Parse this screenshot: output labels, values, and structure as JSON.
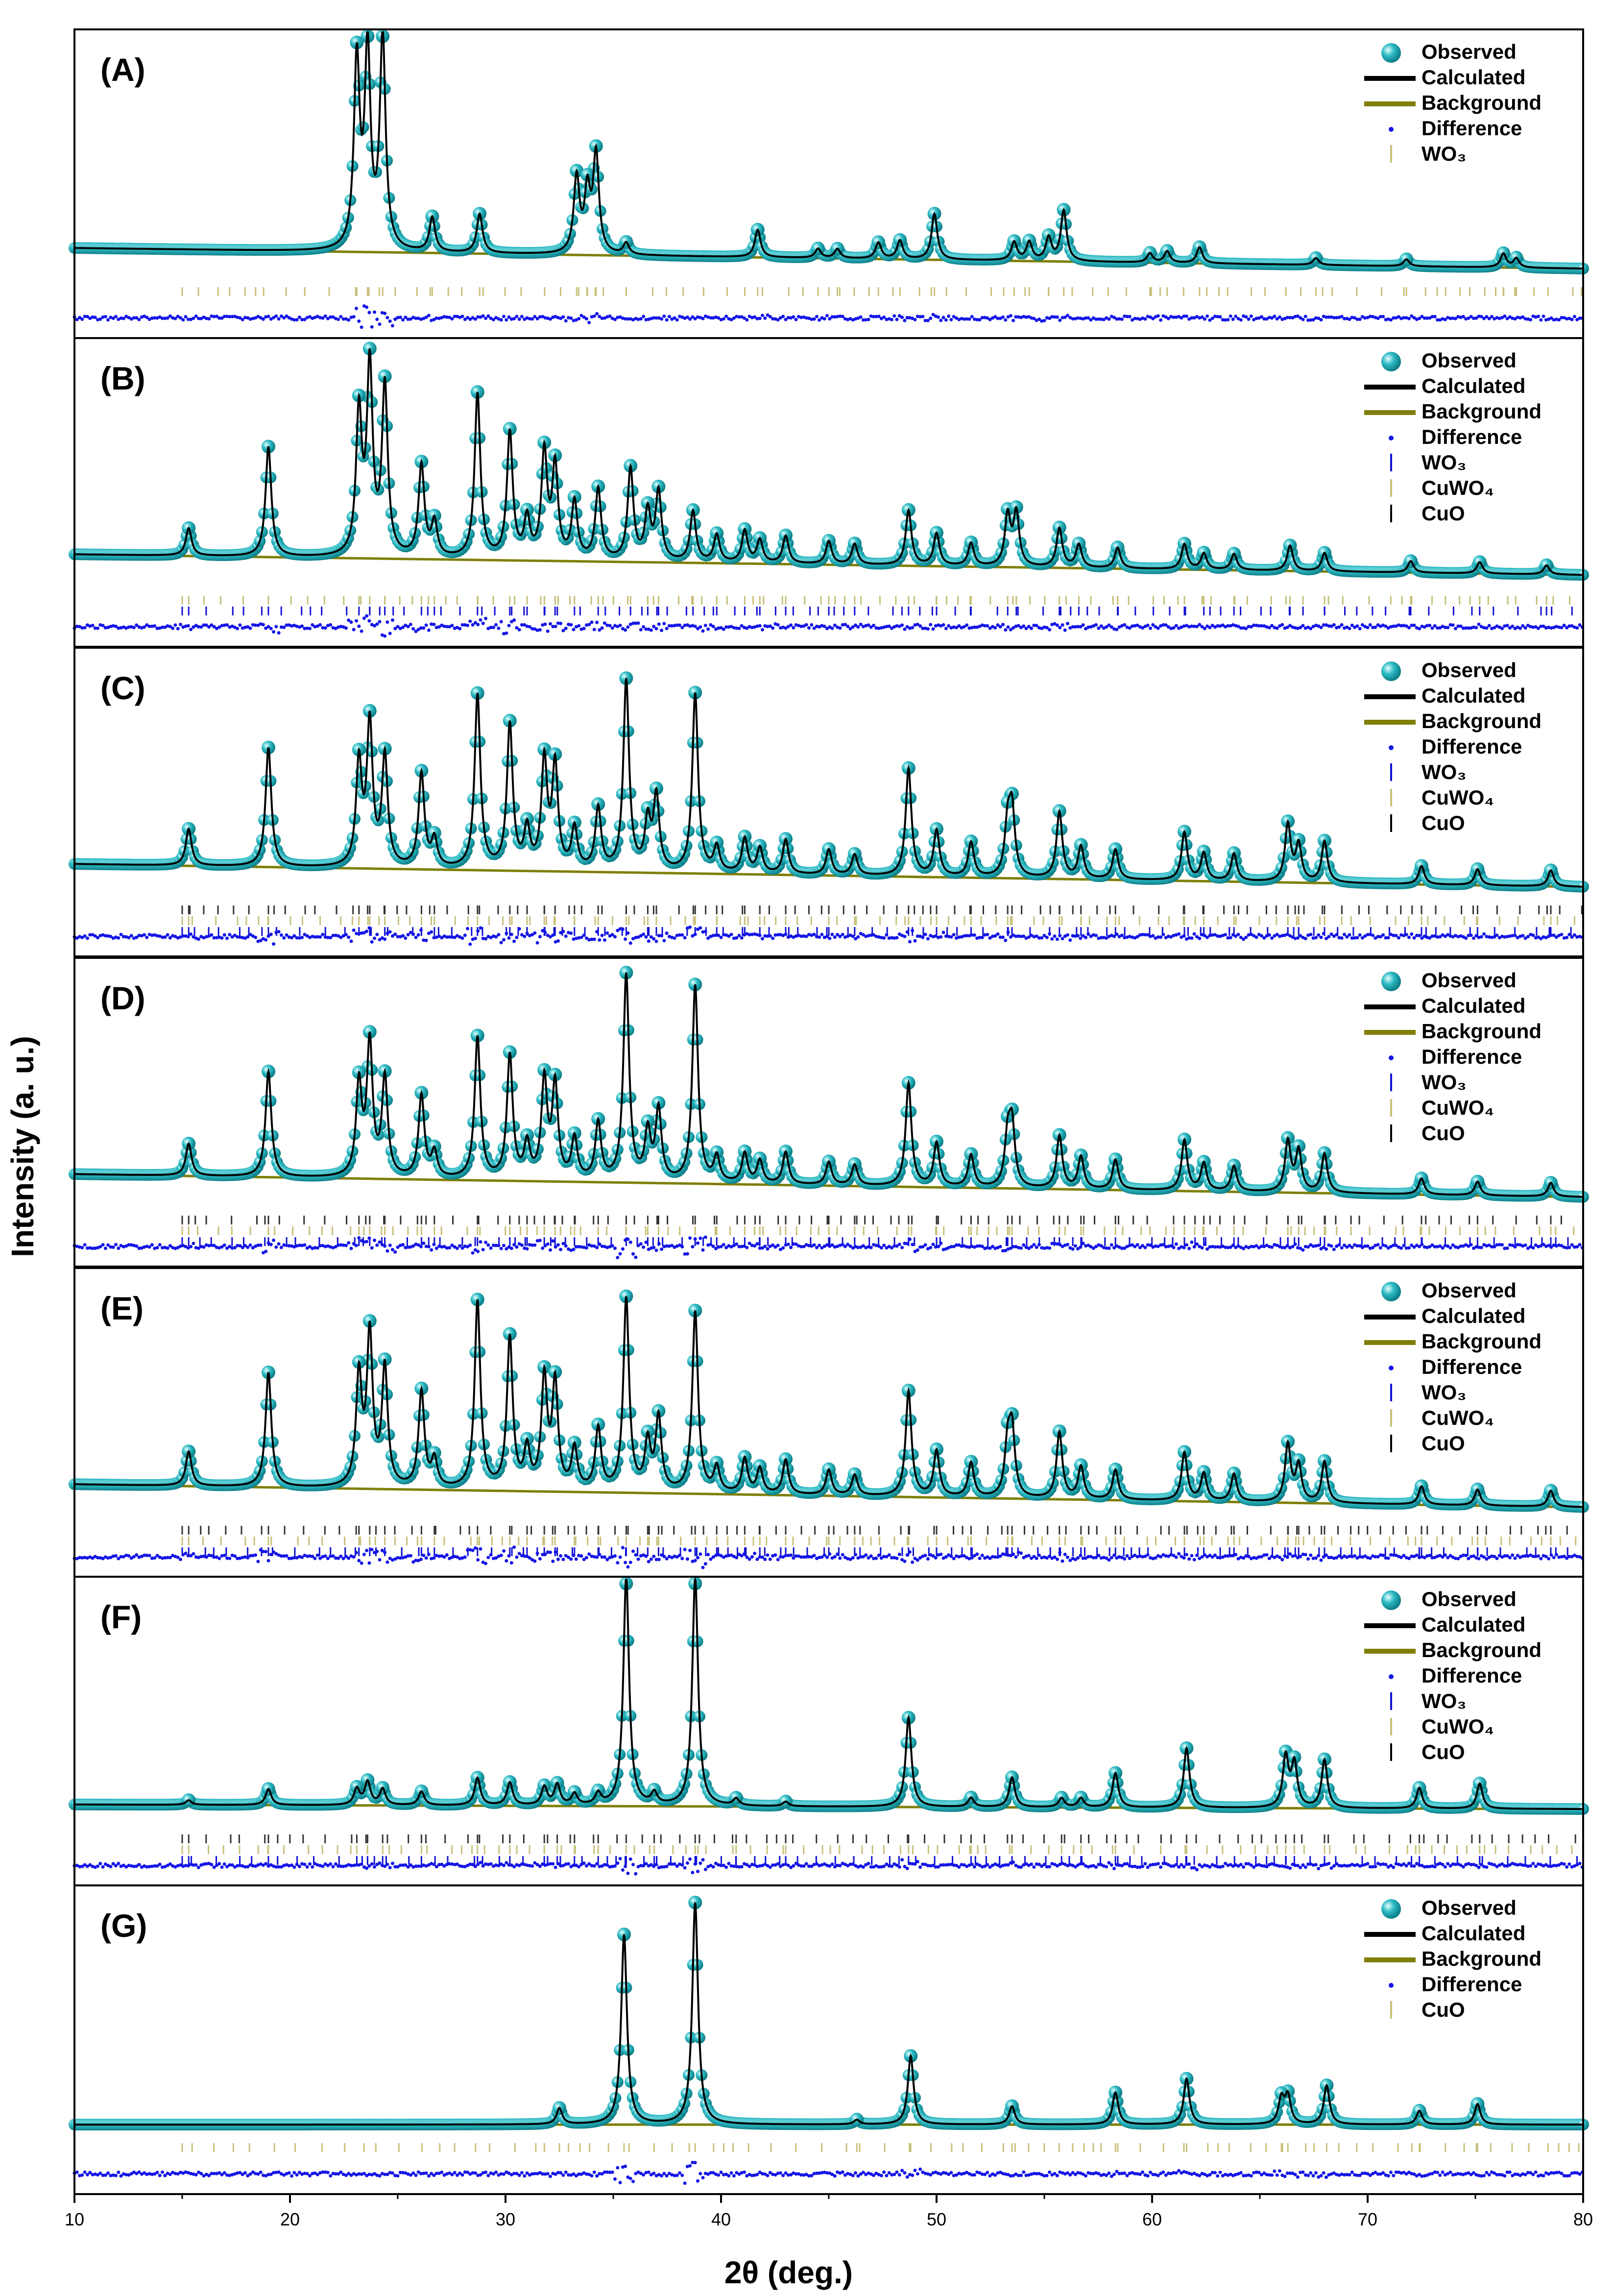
{
  "figure": {
    "xlabel": "2θ (deg.)",
    "ylabel": "Intensity (a. u.)",
    "colors": {
      "observed": "#2fbcc6",
      "calculated": "#000000",
      "background": "#7f7f0a",
      "difference": "#1414e6",
      "wo3": "#1010d0",
      "cuwo4": "#c8c07a",
      "cuo": "#000000"
    }
  },
  "chart_data": {
    "type": "line",
    "title": "",
    "xlabel": "2θ (deg.)",
    "ylabel": "Intensity (a. u.)",
    "xlim": [
      10,
      80
    ],
    "xticks": [
      10,
      20,
      30,
      40,
      50,
      60,
      70,
      80
    ],
    "panels": [
      {
        "label": "(A)",
        "legend": [
          "Observed",
          "Calculated",
          "Background",
          "Difference",
          "WO₃"
        ],
        "background": [
          0.09,
          0.0
        ],
        "peaks": [
          [
            23.1,
            0.82
          ],
          [
            23.6,
            0.86
          ],
          [
            24.3,
            0.93
          ],
          [
            26.6,
            0.15
          ],
          [
            28.8,
            0.17
          ],
          [
            33.3,
            0.33
          ],
          [
            33.8,
            0.26
          ],
          [
            34.2,
            0.43
          ],
          [
            35.6,
            0.05
          ],
          [
            41.7,
            0.12
          ],
          [
            44.5,
            0.04
          ],
          [
            45.4,
            0.04
          ],
          [
            47.3,
            0.07
          ],
          [
            48.3,
            0.08
          ],
          [
            49.9,
            0.2
          ],
          [
            53.6,
            0.08
          ],
          [
            54.3,
            0.08
          ],
          [
            55.2,
            0.1
          ],
          [
            55.9,
            0.22
          ],
          [
            59.9,
            0.04
          ],
          [
            60.7,
            0.05
          ],
          [
            62.2,
            0.07
          ],
          [
            67.6,
            0.03
          ],
          [
            71.8,
            0.03
          ],
          [
            76.3,
            0.06
          ],
          [
            76.9,
            0.04
          ]
        ],
        "ticks": [
          {
            "phase": "WO₃",
            "row": 0,
            "color": "#c8c07a"
          }
        ]
      },
      {
        "label": "(B)",
        "legend": [
          "Observed",
          "Calculated",
          "Background",
          "Difference",
          "WO₃",
          "CuWO₄",
          "CuO"
        ],
        "background": [
          0.1,
          0.01
        ],
        "peaks": [
          [
            15.3,
            0.12
          ],
          [
            19.0,
            0.48
          ],
          [
            23.2,
            0.62
          ],
          [
            23.7,
            0.82
          ],
          [
            24.4,
            0.74
          ],
          [
            26.1,
            0.4
          ],
          [
            26.7,
            0.15
          ],
          [
            28.7,
            0.72
          ],
          [
            30.2,
            0.55
          ],
          [
            31.0,
            0.17
          ],
          [
            31.8,
            0.46
          ],
          [
            32.3,
            0.4
          ],
          [
            33.2,
            0.25
          ],
          [
            34.3,
            0.31
          ],
          [
            35.8,
            0.4
          ],
          [
            36.6,
            0.21
          ],
          [
            37.1,
            0.3
          ],
          [
            38.7,
            0.22
          ],
          [
            39.8,
            0.12
          ],
          [
            41.1,
            0.14
          ],
          [
            41.8,
            0.1
          ],
          [
            43.0,
            0.12
          ],
          [
            45.0,
            0.1
          ],
          [
            46.2,
            0.09
          ],
          [
            48.7,
            0.24
          ],
          [
            50.0,
            0.14
          ],
          [
            51.6,
            0.1
          ],
          [
            53.3,
            0.22
          ],
          [
            53.7,
            0.23
          ],
          [
            55.7,
            0.17
          ],
          [
            56.6,
            0.1
          ],
          [
            58.4,
            0.09
          ],
          [
            61.5,
            0.11
          ],
          [
            62.4,
            0.07
          ],
          [
            63.8,
            0.07
          ],
          [
            66.4,
            0.11
          ],
          [
            68.0,
            0.08
          ],
          [
            72.0,
            0.05
          ],
          [
            75.2,
            0.05
          ],
          [
            78.3,
            0.04
          ]
        ],
        "ticks": [
          {
            "phase": "CuWO₄",
            "row": 0,
            "color": "#c8c07a"
          },
          {
            "phase": "WO₃",
            "row": 1,
            "color": "#1010d0"
          }
        ]
      },
      {
        "label": "(C)",
        "legend": [
          "Observed",
          "Calculated",
          "Background",
          "Difference",
          "WO₃",
          "CuWO₄",
          "CuO"
        ],
        "background": [
          0.1,
          0.0
        ],
        "peaks": [
          [
            15.3,
            0.16
          ],
          [
            19.0,
            0.52
          ],
          [
            23.2,
            0.45
          ],
          [
            23.7,
            0.62
          ],
          [
            24.4,
            0.48
          ],
          [
            26.1,
            0.41
          ],
          [
            26.7,
            0.12
          ],
          [
            28.7,
            0.76
          ],
          [
            30.2,
            0.63
          ],
          [
            31.0,
            0.17
          ],
          [
            31.8,
            0.47
          ],
          [
            32.3,
            0.45
          ],
          [
            33.2,
            0.18
          ],
          [
            34.3,
            0.27
          ],
          [
            35.6,
            0.83
          ],
          [
            36.6,
            0.21
          ],
          [
            37.0,
            0.32
          ],
          [
            38.8,
            0.78
          ],
          [
            39.8,
            0.11
          ],
          [
            41.1,
            0.15
          ],
          [
            41.8,
            0.11
          ],
          [
            43.0,
            0.15
          ],
          [
            45.0,
            0.11
          ],
          [
            46.2,
            0.09
          ],
          [
            48.7,
            0.47
          ],
          [
            50.0,
            0.2
          ],
          [
            51.6,
            0.15
          ],
          [
            53.5,
            0.28
          ],
          [
            53.3,
            0.22
          ],
          [
            55.7,
            0.29
          ],
          [
            56.7,
            0.14
          ],
          [
            58.3,
            0.13
          ],
          [
            61.5,
            0.21
          ],
          [
            62.4,
            0.12
          ],
          [
            63.8,
            0.12
          ],
          [
            66.3,
            0.25
          ],
          [
            66.8,
            0.16
          ],
          [
            68.0,
            0.18
          ],
          [
            72.5,
            0.08
          ],
          [
            75.1,
            0.07
          ],
          [
            78.5,
            0.07
          ]
        ],
        "ticks": [
          {
            "phase": "CuO",
            "row": 0,
            "color": "#333333"
          },
          {
            "phase": "CuWO₄",
            "row": 1,
            "color": "#c8c07a"
          },
          {
            "phase": "WO₃",
            "row": 2,
            "color": "#1010d0"
          }
        ]
      },
      {
        "label": "(D)",
        "legend": [
          "Observed",
          "Calculated",
          "Background",
          "Difference",
          "WO₃",
          "CuWO₄",
          "CuO"
        ],
        "background": [
          0.1,
          0.0
        ],
        "peaks": [
          [
            15.3,
            0.14
          ],
          [
            19.0,
            0.46
          ],
          [
            23.2,
            0.4
          ],
          [
            23.7,
            0.58
          ],
          [
            24.4,
            0.43
          ],
          [
            26.1,
            0.36
          ],
          [
            26.7,
            0.11
          ],
          [
            28.7,
            0.62
          ],
          [
            30.2,
            0.54
          ],
          [
            31.0,
            0.15
          ],
          [
            31.8,
            0.43
          ],
          [
            32.3,
            0.41
          ],
          [
            33.2,
            0.18
          ],
          [
            34.3,
            0.25
          ],
          [
            35.6,
            0.9
          ],
          [
            36.6,
            0.21
          ],
          [
            37.1,
            0.31
          ],
          [
            38.8,
            0.86
          ],
          [
            39.8,
            0.11
          ],
          [
            41.1,
            0.13
          ],
          [
            41.8,
            0.1
          ],
          [
            43.0,
            0.14
          ],
          [
            45.0,
            0.1
          ],
          [
            46.2,
            0.09
          ],
          [
            48.7,
            0.45
          ],
          [
            50.0,
            0.19
          ],
          [
            51.6,
            0.14
          ],
          [
            53.3,
            0.21
          ],
          [
            53.5,
            0.26
          ],
          [
            55.7,
            0.23
          ],
          [
            56.7,
            0.14
          ],
          [
            58.3,
            0.13
          ],
          [
            61.5,
            0.22
          ],
          [
            62.4,
            0.12
          ],
          [
            63.8,
            0.11
          ],
          [
            66.3,
            0.22
          ],
          [
            66.8,
            0.18
          ],
          [
            68.0,
            0.17
          ],
          [
            72.5,
            0.07
          ],
          [
            75.1,
            0.06
          ],
          [
            78.5,
            0.06
          ]
        ],
        "ticks": [
          {
            "phase": "CuO",
            "row": 0,
            "color": "#333333"
          },
          {
            "phase": "CuWO₄",
            "row": 1,
            "color": "#c8c07a"
          },
          {
            "phase": "WO₃",
            "row": 2,
            "color": "#1010d0"
          }
        ]
      },
      {
        "label": "(E)",
        "legend": [
          "Observed",
          "Calculated",
          "Background",
          "Difference",
          "WO₃",
          "CuWO₄",
          "CuO"
        ],
        "background": [
          0.1,
          0.0
        ],
        "peaks": [
          [
            15.3,
            0.15
          ],
          [
            19.0,
            0.5
          ],
          [
            23.2,
            0.48
          ],
          [
            23.7,
            0.66
          ],
          [
            24.4,
            0.52
          ],
          [
            26.1,
            0.42
          ],
          [
            26.7,
            0.12
          ],
          [
            28.7,
            0.82
          ],
          [
            30.2,
            0.66
          ],
          [
            31.0,
            0.17
          ],
          [
            31.8,
            0.48
          ],
          [
            32.3,
            0.46
          ],
          [
            33.2,
            0.18
          ],
          [
            34.3,
            0.27
          ],
          [
            35.6,
            0.84
          ],
          [
            36.6,
            0.21
          ],
          [
            37.1,
            0.32
          ],
          [
            38.8,
            0.79
          ],
          [
            39.8,
            0.11
          ],
          [
            41.1,
            0.15
          ],
          [
            41.8,
            0.11
          ],
          [
            43.0,
            0.15
          ],
          [
            45.0,
            0.11
          ],
          [
            46.2,
            0.09
          ],
          [
            48.7,
            0.46
          ],
          [
            50.0,
            0.2
          ],
          [
            51.6,
            0.15
          ],
          [
            53.3,
            0.22
          ],
          [
            53.5,
            0.28
          ],
          [
            55.7,
            0.29
          ],
          [
            56.7,
            0.14
          ],
          [
            58.3,
            0.13
          ],
          [
            61.5,
            0.21
          ],
          [
            62.4,
            0.12
          ],
          [
            63.8,
            0.12
          ],
          [
            66.3,
            0.25
          ],
          [
            66.8,
            0.16
          ],
          [
            68.0,
            0.18
          ],
          [
            72.5,
            0.08
          ],
          [
            75.1,
            0.07
          ],
          [
            78.5,
            0.07
          ]
        ],
        "ticks": [
          {
            "phase": "CuO",
            "row": 0,
            "color": "#333333"
          },
          {
            "phase": "CuWO₄",
            "row": 1,
            "color": "#c8c07a"
          },
          {
            "phase": "WO₃",
            "row": 2,
            "color": "#1010d0"
          }
        ]
      },
      {
        "label": "(F)",
        "legend": [
          "Observed",
          "Calculated",
          "Background",
          "Difference",
          "WO₃",
          "CuWO₄",
          "CuO"
        ],
        "background": [
          0.05,
          0.03
        ],
        "peaks": [
          [
            15.3,
            0.02
          ],
          [
            19.0,
            0.07
          ],
          [
            23.1,
            0.07
          ],
          [
            23.6,
            0.1
          ],
          [
            24.3,
            0.07
          ],
          [
            26.1,
            0.06
          ],
          [
            28.7,
            0.12
          ],
          [
            30.2,
            0.1
          ],
          [
            31.8,
            0.08
          ],
          [
            32.4,
            0.09
          ],
          [
            33.2,
            0.05
          ],
          [
            34.3,
            0.05
          ],
          [
            35.6,
            1.0
          ],
          [
            36.9,
            0.05
          ],
          [
            38.8,
            1.0
          ],
          [
            40.7,
            0.03
          ],
          [
            43.0,
            0.02
          ],
          [
            48.7,
            0.39
          ],
          [
            51.6,
            0.04
          ],
          [
            53.5,
            0.13
          ],
          [
            55.8,
            0.04
          ],
          [
            56.7,
            0.04
          ],
          [
            58.3,
            0.15
          ],
          [
            61.6,
            0.26
          ],
          [
            66.2,
            0.22
          ],
          [
            66.6,
            0.19
          ],
          [
            68.0,
            0.21
          ],
          [
            72.4,
            0.09
          ],
          [
            75.2,
            0.11
          ]
        ],
        "ticks": [
          {
            "phase": "CuO",
            "row": 0,
            "color": "#333333"
          },
          {
            "phase": "CuWO₄",
            "row": 1,
            "color": "#c8c07a"
          },
          {
            "phase": "WO₃",
            "row": 2,
            "color": "#1010d0"
          }
        ]
      },
      {
        "label": "(G)",
        "legend": [
          "Observed",
          "Calculated",
          "Background",
          "Difference",
          "CuO"
        ],
        "background": [
          0.0,
          0.0
        ],
        "peaks": [
          [
            32.5,
            0.07
          ],
          [
            35.5,
            0.83
          ],
          [
            38.8,
            0.97
          ],
          [
            46.3,
            0.02
          ],
          [
            48.8,
            0.3
          ],
          [
            53.5,
            0.08
          ],
          [
            58.3,
            0.14
          ],
          [
            61.6,
            0.2
          ],
          [
            66.3,
            0.12
          ],
          [
            66.0,
            0.11
          ],
          [
            68.1,
            0.17
          ],
          [
            72.4,
            0.06
          ],
          [
            75.1,
            0.09
          ]
        ],
        "ticks": [
          {
            "phase": "CuO",
            "row": 0,
            "color": "#c8c07a"
          }
        ]
      }
    ]
  }
}
